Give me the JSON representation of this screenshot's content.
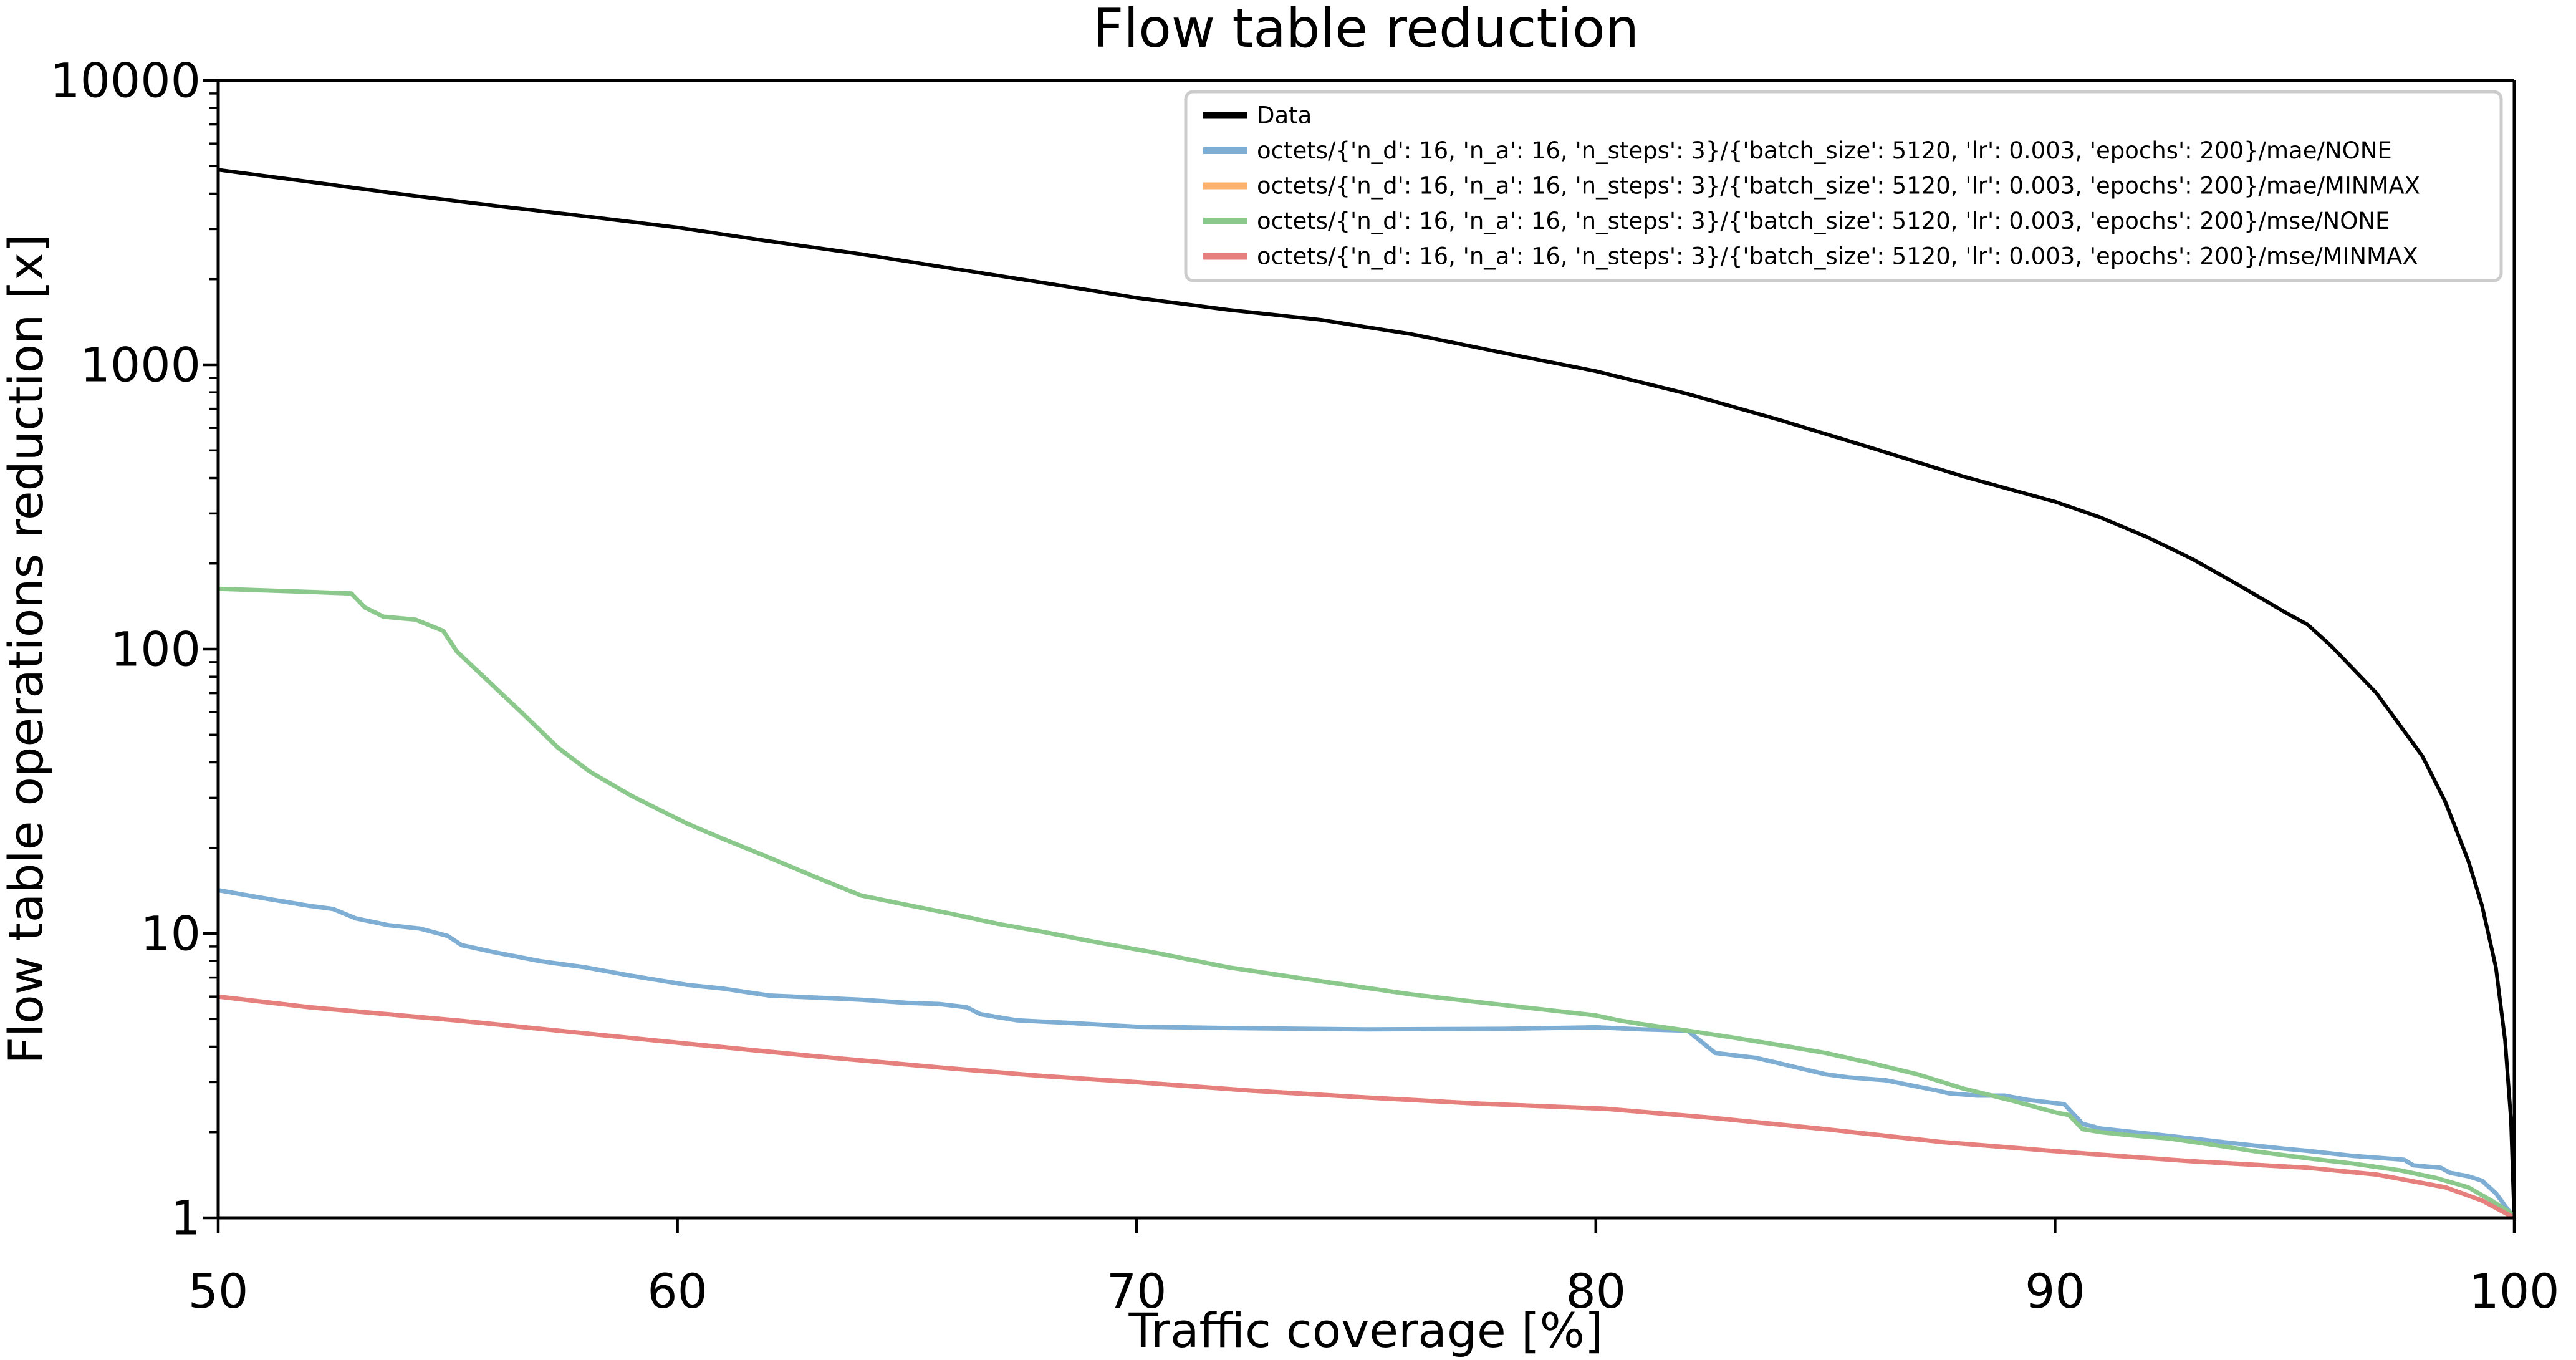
{
  "chart_data": {
    "type": "line",
    "title": "Flow table reduction",
    "xlabel": "Traffic coverage [%]",
    "ylabel": "Flow table operations reduction [x]",
    "xlim": [
      50,
      100
    ],
    "ylim": [
      1,
      10000
    ],
    "yscale": "log",
    "grid": false,
    "legend_position": "upper right",
    "xticks": [
      50,
      60,
      70,
      80,
      90,
      100
    ],
    "yticks": [
      1,
      10,
      100,
      1000,
      10000
    ],
    "ytick_labels": [
      "1",
      "10",
      "100",
      "1000",
      "10000"
    ],
    "series": [
      {
        "name": "Data",
        "color": "#000000",
        "width": 6,
        "points": [
          [
            50,
            4850
          ],
          [
            52,
            4400
          ],
          [
            54,
            3980
          ],
          [
            56,
            3630
          ],
          [
            58,
            3330
          ],
          [
            60,
            3040
          ],
          [
            62,
            2720
          ],
          [
            64,
            2450
          ],
          [
            66,
            2180
          ],
          [
            68,
            1940
          ],
          [
            70,
            1720
          ],
          [
            72,
            1560
          ],
          [
            74,
            1440
          ],
          [
            76,
            1280
          ],
          [
            78,
            1100
          ],
          [
            80,
            950
          ],
          [
            82,
            790
          ],
          [
            84,
            640
          ],
          [
            86,
            510
          ],
          [
            88,
            405
          ],
          [
            90,
            330
          ],
          [
            91,
            290
          ],
          [
            92,
            248
          ],
          [
            93,
            207
          ],
          [
            94,
            168
          ],
          [
            95,
            135
          ],
          [
            95.5,
            122
          ],
          [
            96,
            103
          ],
          [
            97,
            70
          ],
          [
            98,
            42
          ],
          [
            98.5,
            29
          ],
          [
            99,
            18
          ],
          [
            99.3,
            12.5
          ],
          [
            99.6,
            7.6
          ],
          [
            99.8,
            4.2
          ],
          [
            99.93,
            2.2
          ],
          [
            100,
            1.0
          ]
        ]
      },
      {
        "name": "octets/{'n_d': 16, 'n_a': 16, 'n_steps': 3}/{'batch_size': 5120, 'lr': 0.003, 'epochs': 200}/mae/NONE",
        "color": "#7EAED4",
        "width": 7,
        "points": [
          [
            50,
            14.2
          ],
          [
            51,
            13.3
          ],
          [
            52,
            12.5
          ],
          [
            52.5,
            12.2
          ],
          [
            53,
            11.3
          ],
          [
            53.7,
            10.7
          ],
          [
            54.4,
            10.4
          ],
          [
            55,
            9.8
          ],
          [
            55.3,
            9.1
          ],
          [
            56,
            8.6
          ],
          [
            57,
            8.0
          ],
          [
            58,
            7.6
          ],
          [
            59,
            7.1
          ],
          [
            60.2,
            6.6
          ],
          [
            61,
            6.4
          ],
          [
            62,
            6.05
          ],
          [
            63,
            5.95
          ],
          [
            64,
            5.85
          ],
          [
            65,
            5.7
          ],
          [
            65.7,
            5.65
          ],
          [
            66.3,
            5.5
          ],
          [
            66.6,
            5.2
          ],
          [
            67.4,
            4.95
          ],
          [
            68.5,
            4.85
          ],
          [
            70,
            4.7
          ],
          [
            72,
            4.65
          ],
          [
            75,
            4.6
          ],
          [
            78,
            4.62
          ],
          [
            80,
            4.68
          ],
          [
            81,
            4.6
          ],
          [
            82,
            4.55
          ],
          [
            82.6,
            3.8
          ],
          [
            83.5,
            3.65
          ],
          [
            85,
            3.2
          ],
          [
            85.5,
            3.12
          ],
          [
            86.3,
            3.05
          ],
          [
            87.4,
            2.81
          ],
          [
            87.7,
            2.74
          ],
          [
            88.3,
            2.69
          ],
          [
            88.9,
            2.69
          ],
          [
            89.4,
            2.6
          ],
          [
            90.2,
            2.51
          ],
          [
            90.6,
            2.14
          ],
          [
            91,
            2.06
          ],
          [
            92,
            1.98
          ],
          [
            93,
            1.9
          ],
          [
            94,
            1.82
          ],
          [
            95,
            1.75
          ],
          [
            95.5,
            1.72
          ],
          [
            96.5,
            1.65
          ],
          [
            97.6,
            1.6
          ],
          [
            97.8,
            1.53
          ],
          [
            98.4,
            1.5
          ],
          [
            98.6,
            1.44
          ],
          [
            99,
            1.4
          ],
          [
            99.3,
            1.35
          ],
          [
            99.6,
            1.22
          ],
          [
            99.8,
            1.1
          ],
          [
            100,
            1.0
          ]
        ]
      },
      {
        "name": "octets/{'n_d': 16, 'n_a': 16, 'n_steps': 3}/{'batch_size': 5120, 'lr': 0.003, 'epochs': 200}/mae/MINMAX",
        "color": "#FFB26B",
        "width": 7,
        "points": [
          [
            50,
            6.0
          ],
          [
            52,
            5.5
          ],
          [
            55.3,
            4.93
          ],
          [
            58,
            4.45
          ],
          [
            60.2,
            4.1
          ],
          [
            63,
            3.7
          ],
          [
            65.7,
            3.38
          ],
          [
            68,
            3.15
          ],
          [
            70,
            3.0
          ],
          [
            72.5,
            2.8
          ],
          [
            75,
            2.65
          ],
          [
            77.5,
            2.52
          ],
          [
            80.2,
            2.42
          ],
          [
            82.5,
            2.25
          ],
          [
            85,
            2.05
          ],
          [
            87.5,
            1.85
          ],
          [
            90.7,
            1.68
          ],
          [
            93,
            1.58
          ],
          [
            95.5,
            1.5
          ],
          [
            97,
            1.42
          ],
          [
            98.5,
            1.28
          ],
          [
            99.3,
            1.15
          ],
          [
            100,
            1.0
          ]
        ]
      },
      {
        "name": "octets/{'n_d': 16, 'n_a': 16, 'n_steps': 3}/{'batch_size': 5120, 'lr': 0.003, 'epochs': 200}/mse/NONE",
        "color": "#8BC88B",
        "width": 7,
        "points": [
          [
            50,
            163
          ],
          [
            51,
            161
          ],
          [
            52,
            159
          ],
          [
            52.9,
            157
          ],
          [
            53.2,
            140
          ],
          [
            53.6,
            130
          ],
          [
            54.3,
            127
          ],
          [
            54.9,
            116
          ],
          [
            55.2,
            98
          ],
          [
            56,
            74
          ],
          [
            56.6,
            60
          ],
          [
            57.4,
            45
          ],
          [
            58.1,
            37
          ],
          [
            59,
            30.5
          ],
          [
            60.2,
            24.4
          ],
          [
            61,
            21.5
          ],
          [
            62,
            18.5
          ],
          [
            63,
            15.8
          ],
          [
            64,
            13.6
          ],
          [
            65,
            12.6
          ],
          [
            66,
            11.7
          ],
          [
            67,
            10.8
          ],
          [
            68,
            10.1
          ],
          [
            69,
            9.4
          ],
          [
            70.5,
            8.5
          ],
          [
            72,
            7.6
          ],
          [
            74,
            6.8
          ],
          [
            76,
            6.1
          ],
          [
            78,
            5.6
          ],
          [
            80,
            5.15
          ],
          [
            80.5,
            4.95
          ],
          [
            81,
            4.8
          ],
          [
            82,
            4.55
          ],
          [
            83,
            4.3
          ],
          [
            84,
            4.05
          ],
          [
            85,
            3.8
          ],
          [
            86,
            3.5
          ],
          [
            87,
            3.2
          ],
          [
            88,
            2.85
          ],
          [
            89,
            2.6
          ],
          [
            90,
            2.35
          ],
          [
            90.3,
            2.3
          ],
          [
            90.6,
            2.05
          ],
          [
            91,
            2.0
          ],
          [
            91.5,
            1.96
          ],
          [
            92.5,
            1.9
          ],
          [
            93.5,
            1.8
          ],
          [
            94.5,
            1.7
          ],
          [
            95.5,
            1.62
          ],
          [
            96.5,
            1.55
          ],
          [
            97.5,
            1.47
          ],
          [
            98.3,
            1.38
          ],
          [
            99,
            1.28
          ],
          [
            99.5,
            1.15
          ],
          [
            100,
            1.02
          ]
        ]
      },
      {
        "name": "octets/{'n_d': 16, 'n_a': 16, 'n_steps': 3}/{'batch_size': 5120, 'lr': 0.003, 'epochs': 200}/mse/MINMAX",
        "color": "#E5807F",
        "width": 7,
        "points": [
          [
            50,
            6.0
          ],
          [
            52,
            5.5
          ],
          [
            55.3,
            4.93
          ],
          [
            58,
            4.45
          ],
          [
            60.2,
            4.1
          ],
          [
            63,
            3.7
          ],
          [
            65.7,
            3.38
          ],
          [
            68,
            3.15
          ],
          [
            70,
            3.0
          ],
          [
            72.5,
            2.8
          ],
          [
            75,
            2.65
          ],
          [
            77.5,
            2.52
          ],
          [
            80.2,
            2.42
          ],
          [
            82.5,
            2.25
          ],
          [
            85,
            2.05
          ],
          [
            87.5,
            1.85
          ],
          [
            90.7,
            1.68
          ],
          [
            93,
            1.58
          ],
          [
            95.5,
            1.5
          ],
          [
            97,
            1.42
          ],
          [
            98.5,
            1.28
          ],
          [
            99.3,
            1.15
          ],
          [
            100,
            1.0
          ]
        ]
      }
    ],
    "legend_entries": [
      "Data",
      "octets/{'n_d': 16, 'n_a': 16, 'n_steps': 3}/{'batch_size': 5120, 'lr': 0.003, 'epochs': 200}/mae/NONE",
      "octets/{'n_d': 16, 'n_a': 16, 'n_steps': 3}/{'batch_size': 5120, 'lr': 0.003, 'epochs': 200}/mae/MINMAX",
      "octets/{'n_d': 16, 'n_a': 16, 'n_steps': 3}/{'batch_size': 5120, 'lr': 0.003, 'epochs': 200}/mse/NONE",
      "octets/{'n_d': 16, 'n_a': 16, 'n_steps': 3}/{'batch_size': 5120, 'lr': 0.003, 'epochs': 200}/mse/MINMAX"
    ],
    "colors": {
      "data": "#000000",
      "mae_none": "#7EAED4",
      "mae_minmax": "#FFB26B",
      "mse_none": "#8BC88B",
      "mse_minmax": "#E5807F",
      "legend_border": "#CCCCCC",
      "background": "#FFFFFF"
    }
  }
}
